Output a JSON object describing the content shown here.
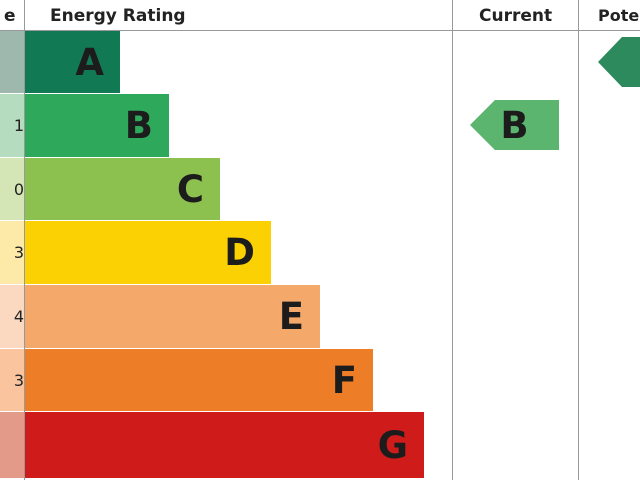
{
  "chart_data": {
    "type": "bar",
    "title": "",
    "headers": {
      "score": "e",
      "rating": "Energy Rating",
      "current": "Current",
      "potential": "Pote"
    },
    "bands": [
      {
        "letter": "A",
        "score": "",
        "color": "#117a55",
        "score_bg": "#9fb8ae"
      },
      {
        "letter": "B",
        "score": "1",
        "color": "#2ea85a",
        "score_bg": "#b6dcbf"
      },
      {
        "letter": "C",
        "score": "0",
        "color": "#8cc04f",
        "score_bg": "#d4e6b6"
      },
      {
        "letter": "D",
        "score": "3",
        "color": "#fcd104",
        "score_bg": "#fdeaa8"
      },
      {
        "letter": "E",
        "score": "4",
        "color": "#f4a96a",
        "score_bg": "#fbd9c0"
      },
      {
        "letter": "F",
        "score": "3",
        "color": "#ee7d28",
        "score_bg": "#f9c49e"
      },
      {
        "letter": "G",
        "score": "",
        "color": "#d01b1b",
        "score_bg": "#e39a88"
      }
    ],
    "current": {
      "letter": "B",
      "color": "#5bb56e"
    },
    "potential": {
      "letter": "",
      "color": "#2c8a5c"
    }
  }
}
